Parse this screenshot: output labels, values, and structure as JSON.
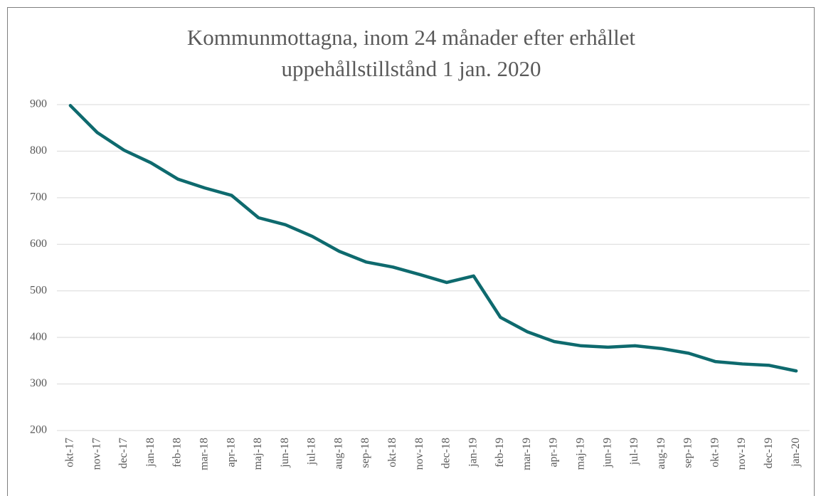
{
  "chart_data": {
    "type": "line",
    "title": [
      "Kommunmottagna, inom 24 månader efter erhållet",
      "uppehållstillstånd 1 jan. 2020"
    ],
    "categories": [
      "okt-17",
      "nov-17",
      "dec-17",
      "jan-18",
      "feb-18",
      "mar-18",
      "apr-18",
      "maj-18",
      "jun-18",
      "jul-18",
      "aug-18",
      "sep-18",
      "okt-18",
      "nov-18",
      "dec-18",
      "jan-19",
      "feb-19",
      "mar-19",
      "apr-19",
      "maj-19",
      "jun-19",
      "jul-19",
      "aug-19",
      "sep-19",
      "okt-19",
      "nov-19",
      "dec-19",
      "jan-20"
    ],
    "values": [
      898,
      840,
      802,
      775,
      740,
      721,
      705,
      657,
      642,
      617,
      585,
      562,
      551,
      535,
      518,
      532,
      443,
      412,
      391,
      382,
      379,
      382,
      376,
      366,
      348,
      343,
      340,
      328
    ],
    "color": "#0e6a6e",
    "ylim": [
      200,
      900
    ],
    "yticks": [
      200,
      300,
      400,
      500,
      600,
      700,
      800,
      900
    ],
    "grid": true
  }
}
